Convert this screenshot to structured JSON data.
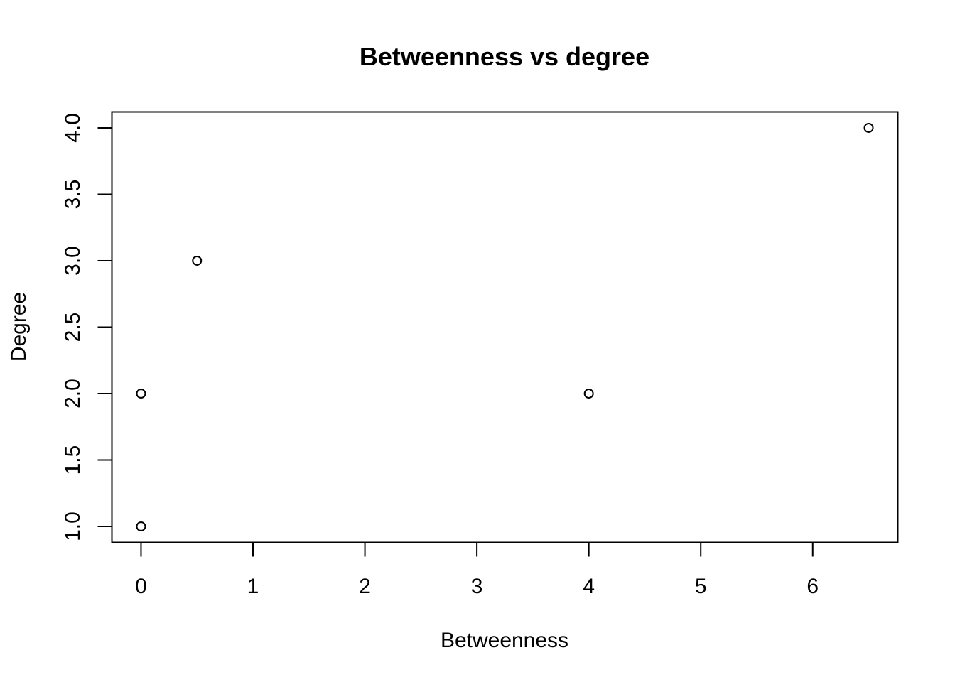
{
  "chart_data": {
    "type": "scatter",
    "title": "Betweenness vs degree",
    "xlabel": "Betweenness",
    "ylabel": "Degree",
    "xlim": [
      -0.26,
      6.76
    ],
    "ylim": [
      0.88,
      4.12
    ],
    "x_ticks": [
      "0",
      "1",
      "2",
      "3",
      "4",
      "5",
      "6"
    ],
    "y_ticks": [
      "1.0",
      "1.5",
      "2.0",
      "2.5",
      "3.0",
      "3.5",
      "4.0"
    ],
    "x_tick_values": [
      0,
      1,
      2,
      3,
      4,
      5,
      6
    ],
    "y_tick_values": [
      1.0,
      1.5,
      2.0,
      2.5,
      3.0,
      3.5,
      4.0
    ],
    "points": [
      {
        "x": 0,
        "y": 1
      },
      {
        "x": 0,
        "y": 2
      },
      {
        "x": 0.5,
        "y": 3
      },
      {
        "x": 4,
        "y": 2
      },
      {
        "x": 6.5,
        "y": 4
      }
    ],
    "marker": "open-circle",
    "grid": false,
    "box": true,
    "colors": {
      "points": "#000000",
      "axes": "#000000",
      "background": "#ffffff"
    }
  }
}
